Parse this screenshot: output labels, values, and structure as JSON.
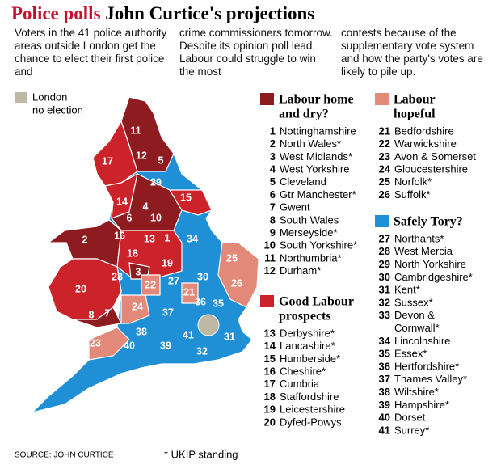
{
  "header": {
    "title_red": "Police polls",
    "title_black": "John Curtice's projections"
  },
  "intro": [
    "Voters in the 41 police authority areas outside London get the chance to elect their first police and",
    "crime commissioners tomorrow.  Despite its opinion poll lead, Labour could struggle to win the most",
    "contests because of the supplementary vote system and how the party's votes are likely to pile up."
  ],
  "london_key": {
    "lines": [
      "London",
      "no election"
    ],
    "color": "#bdb9a5"
  },
  "groups": [
    {
      "heading": [
        "Labour home",
        "and dry?"
      ],
      "color": "#8e1b1f",
      "items": [
        {
          "number": 1,
          "name": "Nottinghamshire"
        },
        {
          "number": 2,
          "name": "North Wales*"
        },
        {
          "number": 3,
          "name": "West Midlands*"
        },
        {
          "number": 4,
          "name": "West Yorkshire"
        },
        {
          "number": 5,
          "name": "Cleveland"
        },
        {
          "number": 6,
          "name": "Gtr Manchester*"
        },
        {
          "number": 7,
          "name": "Gwent"
        },
        {
          "number": 8,
          "name": "South Wales"
        },
        {
          "number": 9,
          "name": "Merseyside*"
        },
        {
          "number": 10,
          "name": "South Yorkshire*"
        },
        {
          "number": 11,
          "name": "Northumbria*"
        },
        {
          "number": 12,
          "name": "Durham*"
        }
      ]
    },
    {
      "heading": [
        "Good Labour",
        "prospects"
      ],
      "color": "#cc2229",
      "items": [
        {
          "number": 13,
          "name": "Derbyshire*"
        },
        {
          "number": 14,
          "name": "Lancashire*"
        },
        {
          "number": 15,
          "name": "Humberside*"
        },
        {
          "number": 16,
          "name": "Cheshire*"
        },
        {
          "number": 17,
          "name": "Cumbria"
        },
        {
          "number": 18,
          "name": "Staffordshire"
        },
        {
          "number": 19,
          "name": "Leicestershire"
        },
        {
          "number": 20,
          "name": "Dyfed-Powys"
        }
      ]
    },
    {
      "heading": [
        "Labour",
        "hopeful"
      ],
      "color": "#e3897a",
      "items": [
        {
          "number": 21,
          "name": "Bedfordshire"
        },
        {
          "number": 22,
          "name": "Warwickshire"
        },
        {
          "number": 23,
          "name": "Avon & Somerset"
        },
        {
          "number": 24,
          "name": "Gloucestershire"
        },
        {
          "number": 25,
          "name": "Norfolk*"
        },
        {
          "number": 26,
          "name": "Suffolk*"
        }
      ]
    },
    {
      "heading": [
        "Safely Tory?"
      ],
      "color": "#1f8fd6",
      "items": [
        {
          "number": 27,
          "name": "Northants*"
        },
        {
          "number": 28,
          "name": "West Mercia"
        },
        {
          "number": 29,
          "name": "North Yorkshire"
        },
        {
          "number": 30,
          "name": "Cambridgeshire*"
        },
        {
          "number": 31,
          "name": "Kent*"
        },
        {
          "number": 32,
          "name": "Sussex*"
        },
        {
          "number": 33,
          "name": [
            "Devon &",
            "Cornwall*"
          ]
        },
        {
          "number": 34,
          "name": "Lincolnshire"
        },
        {
          "number": 35,
          "name": "Essex*"
        },
        {
          "number": 36,
          "name": "Hertfordshire*"
        },
        {
          "number": 37,
          "name": "Thames Valley*"
        },
        {
          "number": 38,
          "name": "Wiltshire*"
        },
        {
          "number": 39,
          "name": "Hampshire*"
        },
        {
          "number": 40,
          "name": "Dorset"
        },
        {
          "number": 41,
          "name": "Surrey*"
        }
      ]
    }
  ],
  "footer": {
    "source": "SOURCE: JOHN CURTICE",
    "note": "* UKIP standing"
  }
}
